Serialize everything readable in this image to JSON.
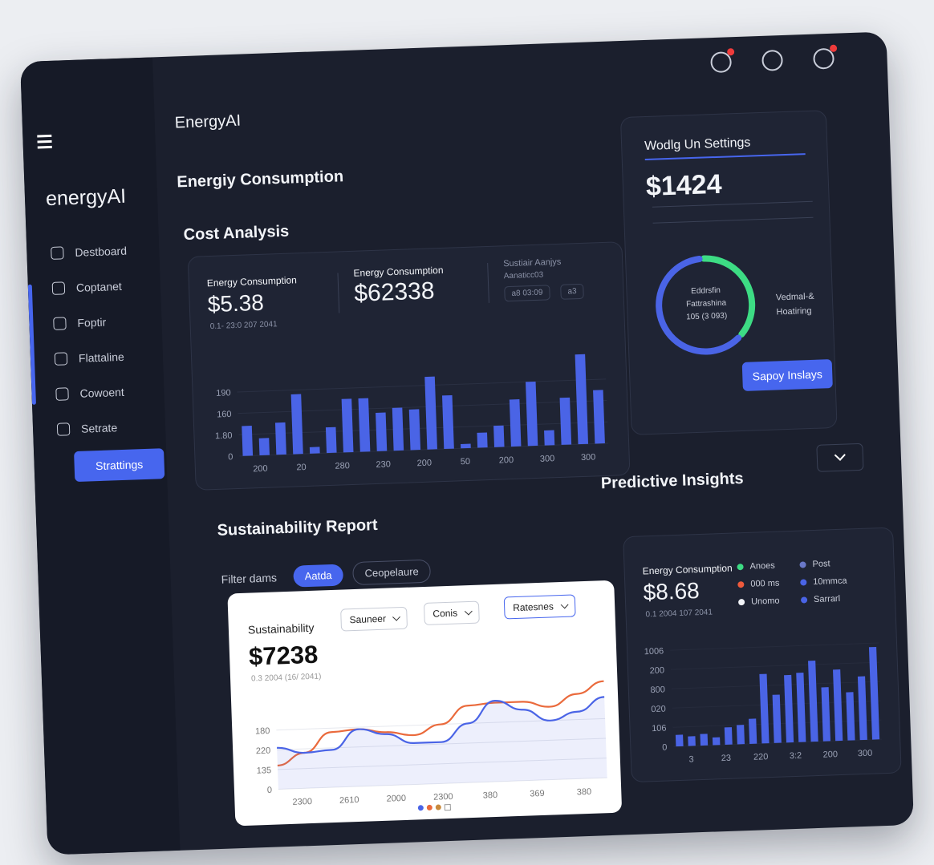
{
  "sidebar": {
    "logo": "energyAI",
    "nav": [
      "Destboard",
      "Coptanet",
      "Foptir",
      "Flattaline",
      "Cowoent",
      "Setrate"
    ],
    "button": "Strattings"
  },
  "main": {
    "app_title": "EnergyAI",
    "heading": "Energiy Consumption",
    "section": "Cost Analysis"
  },
  "cost_card": {
    "stats": [
      {
        "label": "Energy Consumption",
        "value": "$5.38",
        "sub": "0.1- 23:0 207 2041"
      },
      {
        "label": "Energy Consumption",
        "value": "$62338"
      },
      {
        "label": "Sustiair Aanjys",
        "sub": "Aanaticc03"
      }
    ],
    "filters": [
      "a8 03:09",
      "a3"
    ],
    "chart": {
      "type": "bar",
      "color": "#4a64e6",
      "values": [
        1.4,
        0.8,
        1.5,
        2.8,
        0.3,
        1.2,
        2.5,
        2.5,
        1.8,
        2.0,
        1.9,
        3.4,
        2.5,
        0.2,
        0.7,
        1.0,
        2.2,
        3.0,
        0.7,
        2.2,
        4.2,
        2.5
      ],
      "ylim": [
        0,
        4.5
      ],
      "yticks": [
        0,
        {
          "value": 1,
          "label": "1.80"
        },
        {
          "value": 2,
          "label": "160"
        },
        {
          "value": 3,
          "label": "190"
        }
      ],
      "x_labels": [
        "200",
        "20",
        "280",
        "230",
        "200",
        "50",
        "200",
        "300",
        "300"
      ]
    }
  },
  "settings_card": {
    "title": "Wodlg Un Settings",
    "value": "$1424",
    "donut": {
      "type": "pie",
      "values": [
        38,
        62
      ],
      "colors": [
        "#3ddc84",
        "#4a64e6"
      ],
      "lines": [
        "Eddrsfin",
        "Fattrashina",
        "105 (3 093)"
      ]
    },
    "side_lines": [
      "Vedmal-&",
      "Hoatiring"
    ],
    "button": "Sapoy Inslays"
  },
  "insights": {
    "heading": "Predictive Insights",
    "label": "Energy Consumption",
    "value": "$8.68",
    "sub": "0.1 2004 107 2041",
    "legend": [
      {
        "name": "Anoes",
        "color": "#3ddc84"
      },
      {
        "name": "000 ms",
        "color": "#ef5a3c"
      },
      {
        "name": "Unomo",
        "color": "#f2f4f8"
      },
      {
        "name": "Post",
        "color": "#6a78c8"
      },
      {
        "name": "10mmca",
        "color": "#4a64e6"
      },
      {
        "name": "Sarrarl",
        "color": "#4a64e6"
      }
    ],
    "chart": {
      "type": "bar",
      "color": "#4a64e6",
      "values": [
        0.6,
        0.5,
        0.6,
        0.4,
        0.9,
        1.0,
        1.3,
        3.6,
        2.5,
        3.5,
        3.6,
        4.2,
        2.8,
        3.7,
        2.5,
        3.3,
        4.8
      ],
      "ylim": [
        0,
        5.2
      ],
      "yticks": [
        0,
        {
          "value": 1,
          "label": "106"
        },
        {
          "value": 2,
          "label": "020"
        },
        {
          "value": 3,
          "label": "800"
        },
        {
          "value": 4,
          "label": "200"
        },
        {
          "value": 5,
          "label": "1006"
        }
      ],
      "x_labels": [
        "3",
        "23",
        "220",
        "3:2",
        "200",
        "300"
      ]
    }
  },
  "sustainability": {
    "heading": "Sustainability Report",
    "filter_label": "Filter dams",
    "chips": [
      "Aatda",
      "Ceopelaure"
    ],
    "card": {
      "title": "Sustainability",
      "selects": [
        "Sauneer",
        "Conis",
        "Ratesnes"
      ],
      "value": "$7238",
      "sub": "0.3 2004 (16/ 2041)",
      "chart": {
        "type": "line",
        "ylim": [
          0,
          5
        ],
        "yticks": [
          0,
          {
            "value": 1,
            "label": "135"
          },
          {
            "value": 2,
            "label": "220"
          },
          {
            "value": 3,
            "label": "180"
          }
        ],
        "x_labels": [
          "2300",
          "2610",
          "2000",
          "2300",
          "380",
          "369",
          "380"
        ],
        "series": [
          {
            "color": "#ea6a3c",
            "values": [
              1.2,
              1.8,
              2.8,
              2.9,
              2.7,
              2.5,
              3.0,
              3.9,
              4.0,
              4.0,
              3.7,
              4.3,
              4.9
            ]
          },
          {
            "color": "#4a64e6",
            "values": [
              2.1,
              1.8,
              1.9,
              2.9,
              2.6,
              2.1,
              2.1,
              3.0,
              4.1,
              3.6,
              3.0,
              3.4,
              4.1
            ]
          }
        ]
      }
    }
  }
}
